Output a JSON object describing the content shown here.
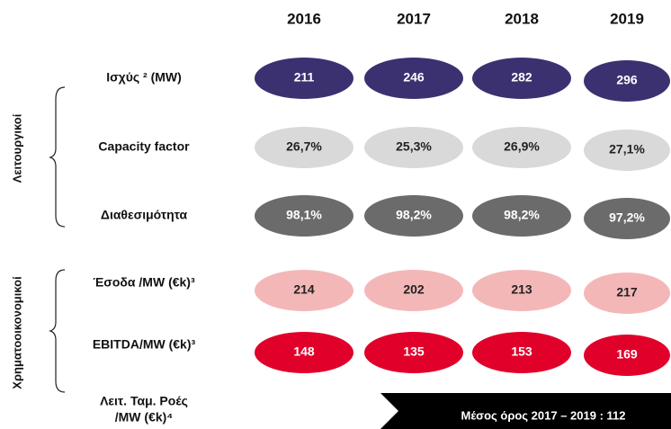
{
  "header": {
    "years": [
      "2016",
      "2017",
      "2018",
      "2019"
    ]
  },
  "groups": [
    {
      "label": "Λειτουργικοί",
      "rows": [
        {
          "label": "Ισχύς ² (MW)",
          "cells": [
            "211",
            "246",
            "282",
            "296"
          ]
        },
        {
          "label": "Capacity factor",
          "cells": [
            "26,7%",
            "25,3%",
            "26,9%",
            "27,1%"
          ]
        },
        {
          "label": "Διαθεσιμότητα",
          "cells": [
            "98,1%",
            "98,2%",
            "98,2%",
            "97,2%"
          ]
        }
      ]
    },
    {
      "label": "Χρηματοοικονομικοί",
      "rows": [
        {
          "label": "Έσοδα /MW (€k)³",
          "cells": [
            "214",
            "202",
            "213",
            "217"
          ]
        },
        {
          "label": "EBITDA/MW (€k)³",
          "cells": [
            "148",
            "135",
            "153",
            "169"
          ]
        },
        {
          "label_lines": [
            "Λειτ. Ταμ. Ροές",
            "/MW (€k)⁴"
          ],
          "banner": "Μέσος όρος 2017 – 2019 : 112"
        }
      ]
    }
  ]
}
